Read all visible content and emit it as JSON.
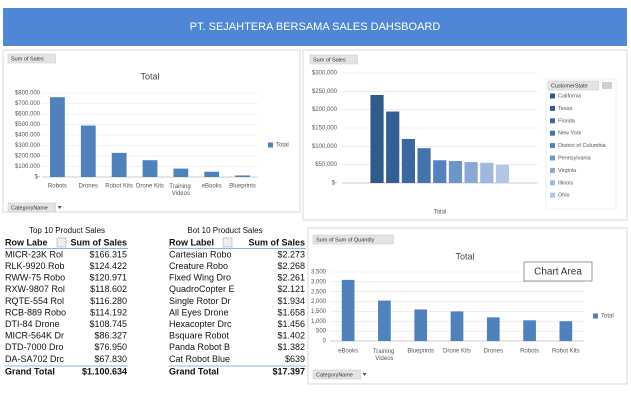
{
  "header": {
    "title": "PT. SEJAHTERA BERSAMA SALES DAHSBOARD"
  },
  "chart_data": [
    {
      "type": "bar",
      "title": "Total",
      "field_button": "Sum of Sales",
      "axis_button": "CategoryName",
      "categories": [
        "Robots",
        "Drones",
        "Robot Kits",
        "Drone Kits",
        "Training Videos",
        "eBooks",
        "Blueprints"
      ],
      "series": [
        {
          "name": "Total",
          "color": "#4f81bd",
          "values": [
            760000,
            490000,
            230000,
            160000,
            80000,
            50000,
            15000
          ]
        }
      ],
      "ylim": [
        0,
        800000
      ],
      "yticks": [
        {
          "value": 0,
          "label": "$-"
        },
        {
          "value": 100000,
          "label": "$100.000"
        },
        {
          "value": 200000,
          "label": "$200.000"
        },
        {
          "value": 300000,
          "label": "$300.000"
        },
        {
          "value": 400000,
          "label": "$400.000"
        },
        {
          "value": 500000,
          "label": "$500.000"
        },
        {
          "value": 600000,
          "label": "$600.000"
        },
        {
          "value": 700000,
          "label": "$700.000"
        },
        {
          "value": 800000,
          "label": "$800.000"
        }
      ],
      "grid": true,
      "legend": "right"
    },
    {
      "type": "bar",
      "field_button": "Sum of Sales",
      "legend_button": "CustomerState",
      "categories": [
        "Total"
      ],
      "series": [
        {
          "name": "California",
          "color": "#2e5a8c",
          "values": [
            240000
          ]
        },
        {
          "name": "Texas",
          "color": "#335f94",
          "values": [
            195000
          ]
        },
        {
          "name": "Florida",
          "color": "#3a689f",
          "values": [
            120000
          ]
        },
        {
          "name": "New York",
          "color": "#4472ad",
          "values": [
            95000
          ]
        },
        {
          "name": "District of Columbia",
          "color": "#5582bf",
          "values": [
            62000
          ]
        },
        {
          "name": "Pennsylvania",
          "color": "#6e95c9",
          "values": [
            60000
          ]
        },
        {
          "name": "Virginia",
          "color": "#89a8d3",
          "values": [
            57000
          ]
        },
        {
          "name": "Illinois",
          "color": "#9fb8dc",
          "values": [
            55000
          ]
        },
        {
          "name": "Ohio",
          "color": "#b3c6e4",
          "values": [
            50000
          ]
        }
      ],
      "ylim": [
        0,
        300000
      ],
      "yticks": [
        {
          "value": 0,
          "label": "$-"
        },
        {
          "value": 50000,
          "label": "$50,000"
        },
        {
          "value": 100000,
          "label": "$100,000"
        },
        {
          "value": 150000,
          "label": "$150,000"
        },
        {
          "value": 200000,
          "label": "$200,000"
        },
        {
          "value": 250000,
          "label": "$250,000"
        },
        {
          "value": 300000,
          "label": "$300,000"
        }
      ],
      "grid": true,
      "legend": "right"
    },
    {
      "type": "bar",
      "title": "Total",
      "field_button": "Sum of Sum of Quantity",
      "axis_button": "CategoryName",
      "categories": [
        "eBooks",
        "Training Videos",
        "Blueprints",
        "Drone Kits",
        "Drones",
        "Robots",
        "Robot Kits"
      ],
      "series": [
        {
          "name": "Total",
          "color": "#4f81bd",
          "values": [
            3100,
            2050,
            1600,
            1500,
            1200,
            1050,
            1000
          ]
        }
      ],
      "ylim": [
        0,
        3500
      ],
      "yticks": [
        0,
        500,
        {
          "value": 1000,
          "label": "1,000"
        },
        {
          "value": 1500,
          "label": "1,500"
        },
        {
          "value": 2000,
          "label": "2,000"
        },
        {
          "value": 2500,
          "label": "2,500"
        },
        {
          "value": 3000,
          "label": "3,000"
        },
        {
          "value": 3500,
          "label": "3,500"
        }
      ],
      "grid": true,
      "legend": "right"
    }
  ],
  "tooltip": "Chart Area",
  "tables": [
    {
      "title": "Top 10 Product Sales",
      "headers": [
        "Row Labe",
        "Sum of Sales"
      ],
      "rows": [
        [
          "MICR-23K Rol",
          "$166.315"
        ],
        [
          "RLK-9920 Rob",
          "$124.422"
        ],
        [
          "RWW-75 Robo",
          "$120.971"
        ],
        [
          "RXW-9807 Rol",
          "$118.602"
        ],
        [
          "RQTE-554 Rol",
          "$116.280"
        ],
        [
          "RCB-889 Robo",
          "$114.192"
        ],
        [
          "DTI-84 Drone",
          "$108.745"
        ],
        [
          "MICR-564K Dr",
          "$86.327"
        ],
        [
          "DTD-7000 Dro",
          "$76.950"
        ],
        [
          "DA-SA702 Drc",
          "$67.830"
        ]
      ],
      "total": [
        "Grand Total",
        "$1.100.634"
      ]
    },
    {
      "title": "Bot 10 Product Sales",
      "headers": [
        "Row Label",
        "Sum of Sales"
      ],
      "rows": [
        [
          "Cartesian Robo",
          "$2.273"
        ],
        [
          "Creature Robo",
          "$2.268"
        ],
        [
          "Fixed Wing Dro",
          "$2.261"
        ],
        [
          "QuadroCopter E",
          "$2.121"
        ],
        [
          "Single Rotor Dr",
          "$1.934"
        ],
        [
          "All Eyes Drone",
          "$1.658"
        ],
        [
          "Hexacopter Drc",
          "$1.456"
        ],
        [
          "Bsquare Robot",
          "$1.402"
        ],
        [
          "Panda Robot B",
          "$1.382"
        ],
        [
          "Cat Robot Blue",
          "$639"
        ]
      ],
      "total": [
        "Grand Total",
        "$17.397"
      ]
    }
  ]
}
